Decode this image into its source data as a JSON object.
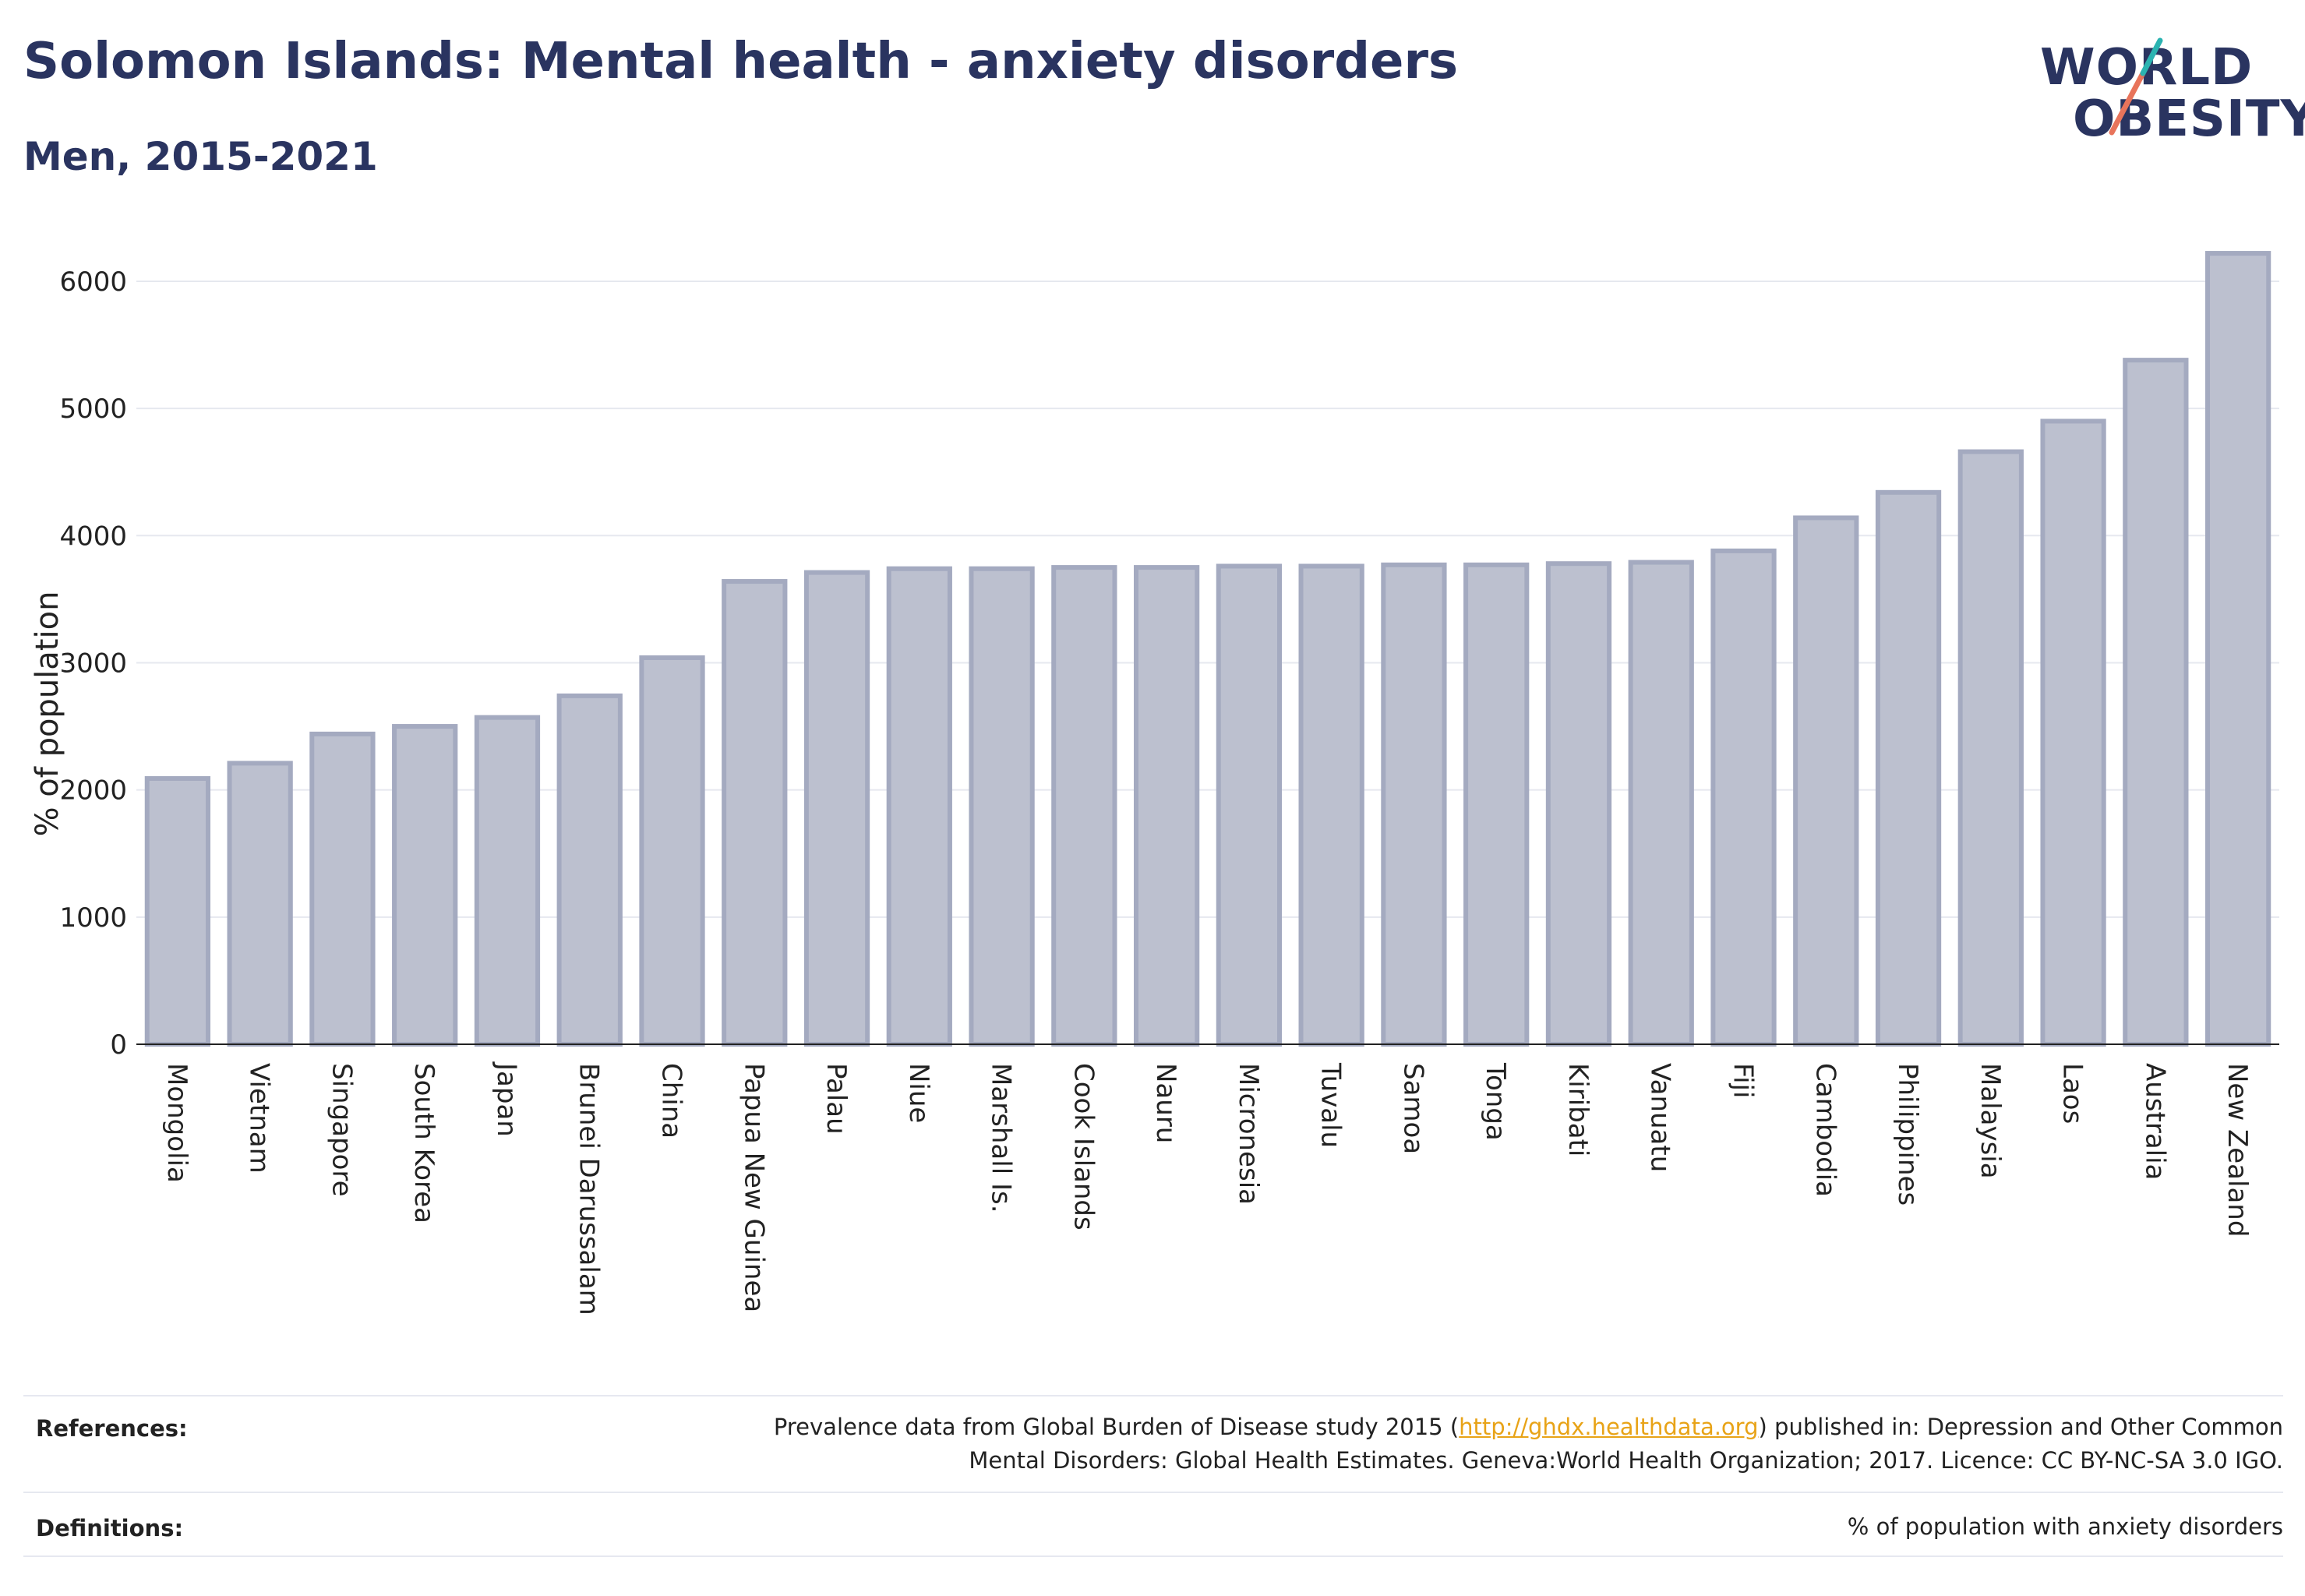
{
  "title": "Solomon Islands: Mental health - anxiety disorders",
  "subtitle": "Men, 2015-2021",
  "logo": {
    "line1": "WORLD",
    "line2": "OBESITY"
  },
  "colors": {
    "bar_fill": "#bcc0cf",
    "bar_stroke": "#a4aac0",
    "title": "#2a3460",
    "logo_teal": "#2bb3b1",
    "logo_coral": "#e8745b",
    "link": "#e8a317"
  },
  "chart_data": {
    "type": "bar",
    "categories": [
      "Mongolia",
      "Vietnam",
      "Singapore",
      "South Korea",
      "Japan",
      "Brunei Darussalam",
      "China",
      "Papua New Guinea",
      "Palau",
      "Niue",
      "Marshall Is.",
      "Cook Islands",
      "Nauru",
      "Micronesia",
      "Tuvalu",
      "Samoa",
      "Tonga",
      "Kiribati",
      "Vanuatu",
      "Fiji",
      "Cambodia",
      "Philippines",
      "Malaysia",
      "Laos",
      "Australia",
      "New Zealand"
    ],
    "values": [
      2090,
      2210,
      2440,
      2500,
      2570,
      2740,
      3040,
      3640,
      3710,
      3740,
      3740,
      3750,
      3750,
      3760,
      3760,
      3770,
      3770,
      3780,
      3790,
      3880,
      4140,
      4340,
      4660,
      4900,
      5380,
      6220
    ],
    "ylabel": "% of population",
    "xlabel": "",
    "ylim": [
      0,
      6300
    ],
    "yticks": [
      0,
      1000,
      2000,
      3000,
      4000,
      5000,
      6000
    ],
    "grid": true
  },
  "footer": {
    "references_label": "References:",
    "references_text_before": "Prevalence data from Global Burden of Disease study 2015 (",
    "references_link": "http://ghdx.healthdata.org",
    "references_text_after": ") published in: Depression and Other Common",
    "references_line2": "Mental Disorders: Global Health Estimates. Geneva:World Health Organization; 2017. Licence: CC BY-NC-SA 3.0 IGO.",
    "definitions_label": "Definitions:",
    "definitions_text": "% of population with anxiety disorders"
  }
}
